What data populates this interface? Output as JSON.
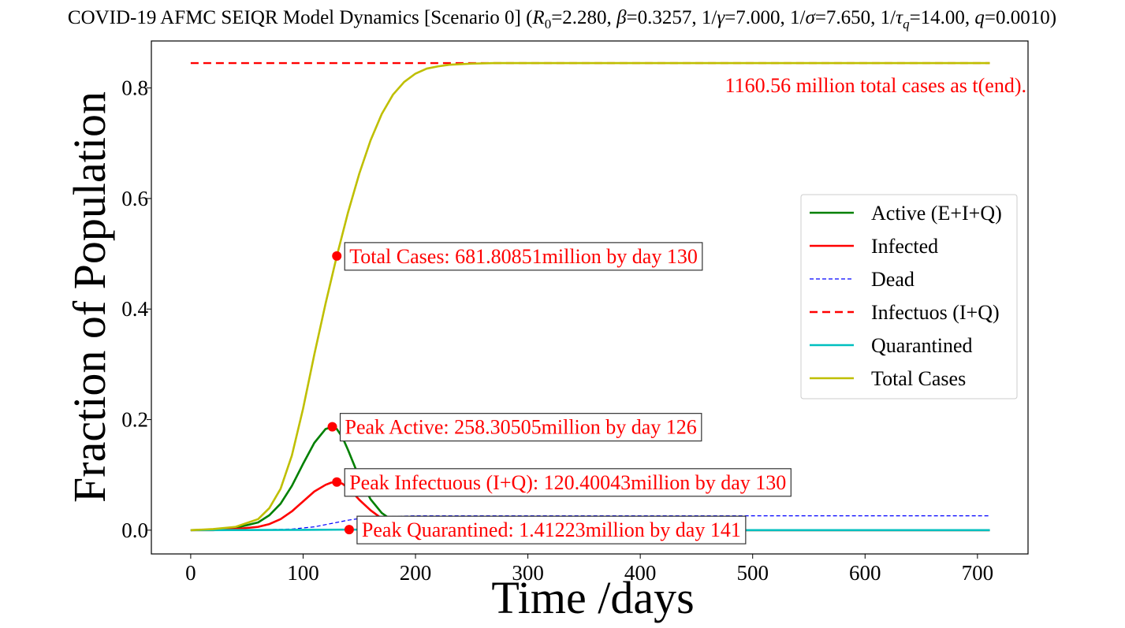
{
  "chart_data": {
    "type": "line",
    "title": "COVID-19 AFMC SEIQR Model Dynamics [Scenario 0] (R0=2.280, β=0.3257, 1/γ=7.000, 1/σ=7.650, 1/τq=14.00, q=0.0010)",
    "title_parts": {
      "prefix": "COVID-19 AFMC SEIQR Model Dynamics [Scenario 0] (",
      "r": "R",
      "r_sub": "0",
      "r_val": "=2.280, ",
      "beta": "β",
      "beta_val": "=0.3257, 1/",
      "gamma": "γ",
      "gamma_val": "=7.000, 1/",
      "sigma": "σ",
      "sigma_val": "=7.650, 1/",
      "tau": "τ",
      "tau_sub": "q",
      "tau_val": "=14.00, ",
      "q": "q",
      "q_val": "=0.0010)"
    },
    "xlabel": "Time /days",
    "ylabel": "Fraction of Population",
    "xlim": [
      -35,
      745
    ],
    "ylim": [
      -0.043,
      0.885
    ],
    "xticks": [
      0,
      100,
      200,
      300,
      400,
      500,
      600,
      700
    ],
    "yticks": [
      0.0,
      0.2,
      0.4,
      0.6,
      0.8
    ],
    "ytick_labels": [
      "0.0",
      "0.2",
      "0.4",
      "0.6",
      "0.8"
    ],
    "grid": false,
    "legend_position": "center-right",
    "series": [
      {
        "name": "Active (E+I+Q)",
        "color": "#008000",
        "style": "solid",
        "x": [
          0,
          20,
          40,
          60,
          70,
          80,
          90,
          100,
          110,
          120,
          126,
          130,
          135,
          140,
          145,
          150,
          160,
          170,
          180,
          190,
          200,
          220,
          250,
          300,
          400,
          500,
          600,
          711
        ],
        "y": [
          0.0,
          0.001,
          0.004,
          0.014,
          0.027,
          0.048,
          0.08,
          0.12,
          0.158,
          0.183,
          0.187,
          0.183,
          0.168,
          0.145,
          0.12,
          0.095,
          0.056,
          0.031,
          0.017,
          0.009,
          0.005,
          0.001,
          0.0,
          0.0,
          0.0,
          0.0,
          0.0,
          0.0
        ]
      },
      {
        "name": "Infected",
        "color": "#ff0000",
        "style": "solid",
        "x": [
          0,
          20,
          40,
          60,
          70,
          80,
          90,
          100,
          110,
          120,
          125,
          130,
          135,
          140,
          145,
          150,
          160,
          170,
          180,
          190,
          200,
          220,
          250,
          300,
          400,
          500,
          600,
          711
        ],
        "y": [
          0.0,
          0.0,
          0.002,
          0.006,
          0.011,
          0.02,
          0.034,
          0.052,
          0.07,
          0.082,
          0.086,
          0.087,
          0.084,
          0.076,
          0.066,
          0.055,
          0.036,
          0.021,
          0.012,
          0.006,
          0.003,
          0.001,
          0.0,
          0.0,
          0.0,
          0.0,
          0.0,
          0.0
        ]
      },
      {
        "name": "Dead",
        "color": "#0000ff",
        "style": "dashed-thin",
        "x": [
          0,
          50,
          70,
          90,
          100,
          110,
          120,
          130,
          140,
          150,
          160,
          180,
          200,
          250,
          300,
          400,
          500,
          600,
          711
        ],
        "y": [
          0.0,
          0.0,
          0.001,
          0.002,
          0.004,
          0.006,
          0.01,
          0.014,
          0.018,
          0.021,
          0.023,
          0.025,
          0.026,
          0.026,
          0.026,
          0.026,
          0.026,
          0.026,
          0.026
        ]
      },
      {
        "name": "Infectuos (I+Q)",
        "color": "#ff0000",
        "style": "dashed",
        "x": [
          0,
          711
        ],
        "y": [
          0.845,
          0.845
        ]
      },
      {
        "name": "Quarantined",
        "color": "#00bfbf",
        "style": "solid",
        "x": [
          0,
          100,
          141,
          200,
          300,
          711
        ],
        "y": [
          0.0,
          0.0005,
          0.001,
          0.0005,
          0.0,
          0.0
        ]
      },
      {
        "name": "Total Cases",
        "color": "#bfbf00",
        "style": "solid",
        "x": [
          0,
          20,
          40,
          60,
          70,
          80,
          90,
          100,
          110,
          120,
          130,
          140,
          150,
          160,
          170,
          180,
          190,
          200,
          210,
          220,
          230,
          240,
          250,
          270,
          300,
          400,
          500,
          600,
          711
        ],
        "y": [
          0.0,
          0.002,
          0.006,
          0.02,
          0.04,
          0.075,
          0.135,
          0.22,
          0.318,
          0.41,
          0.496,
          0.575,
          0.645,
          0.705,
          0.753,
          0.788,
          0.811,
          0.826,
          0.835,
          0.839,
          0.842,
          0.843,
          0.844,
          0.845,
          0.845,
          0.845,
          0.845,
          0.845,
          0.845
        ]
      }
    ],
    "markers": [
      {
        "name": "total-cases-marker",
        "x": 130,
        "y": 0.496
      },
      {
        "name": "peak-active-marker",
        "x": 126,
        "y": 0.187
      },
      {
        "name": "peak-infectuous-marker",
        "x": 130,
        "y": 0.087
      },
      {
        "name": "peak-quarantined-marker",
        "x": 141,
        "y": 0.001
      }
    ],
    "annotations": [
      {
        "name": "total-cases-annotation",
        "text": "Total Cases: 681.80851million by day 130",
        "x": 130,
        "y": 0.496,
        "boxed": true
      },
      {
        "name": "peak-active-annotation",
        "text": "Peak Active: 258.30505million by day 126",
        "x": 126,
        "y": 0.187,
        "boxed": true
      },
      {
        "name": "peak-infectuous-annotation",
        "text": "Peak Infectuous (I+Q): 120.40043million by day 130",
        "x": 130,
        "y": 0.087,
        "boxed": true
      },
      {
        "name": "peak-quarantined-annotation",
        "text": "Peak Quarantined: 1.41223million by day 141",
        "x": 141,
        "y": 0.001,
        "boxed": true
      },
      {
        "name": "total-end-annotation",
        "text": "1160.56 million total cases as t(end).",
        "x": 711,
        "y": 0.805,
        "boxed": false
      }
    ]
  }
}
